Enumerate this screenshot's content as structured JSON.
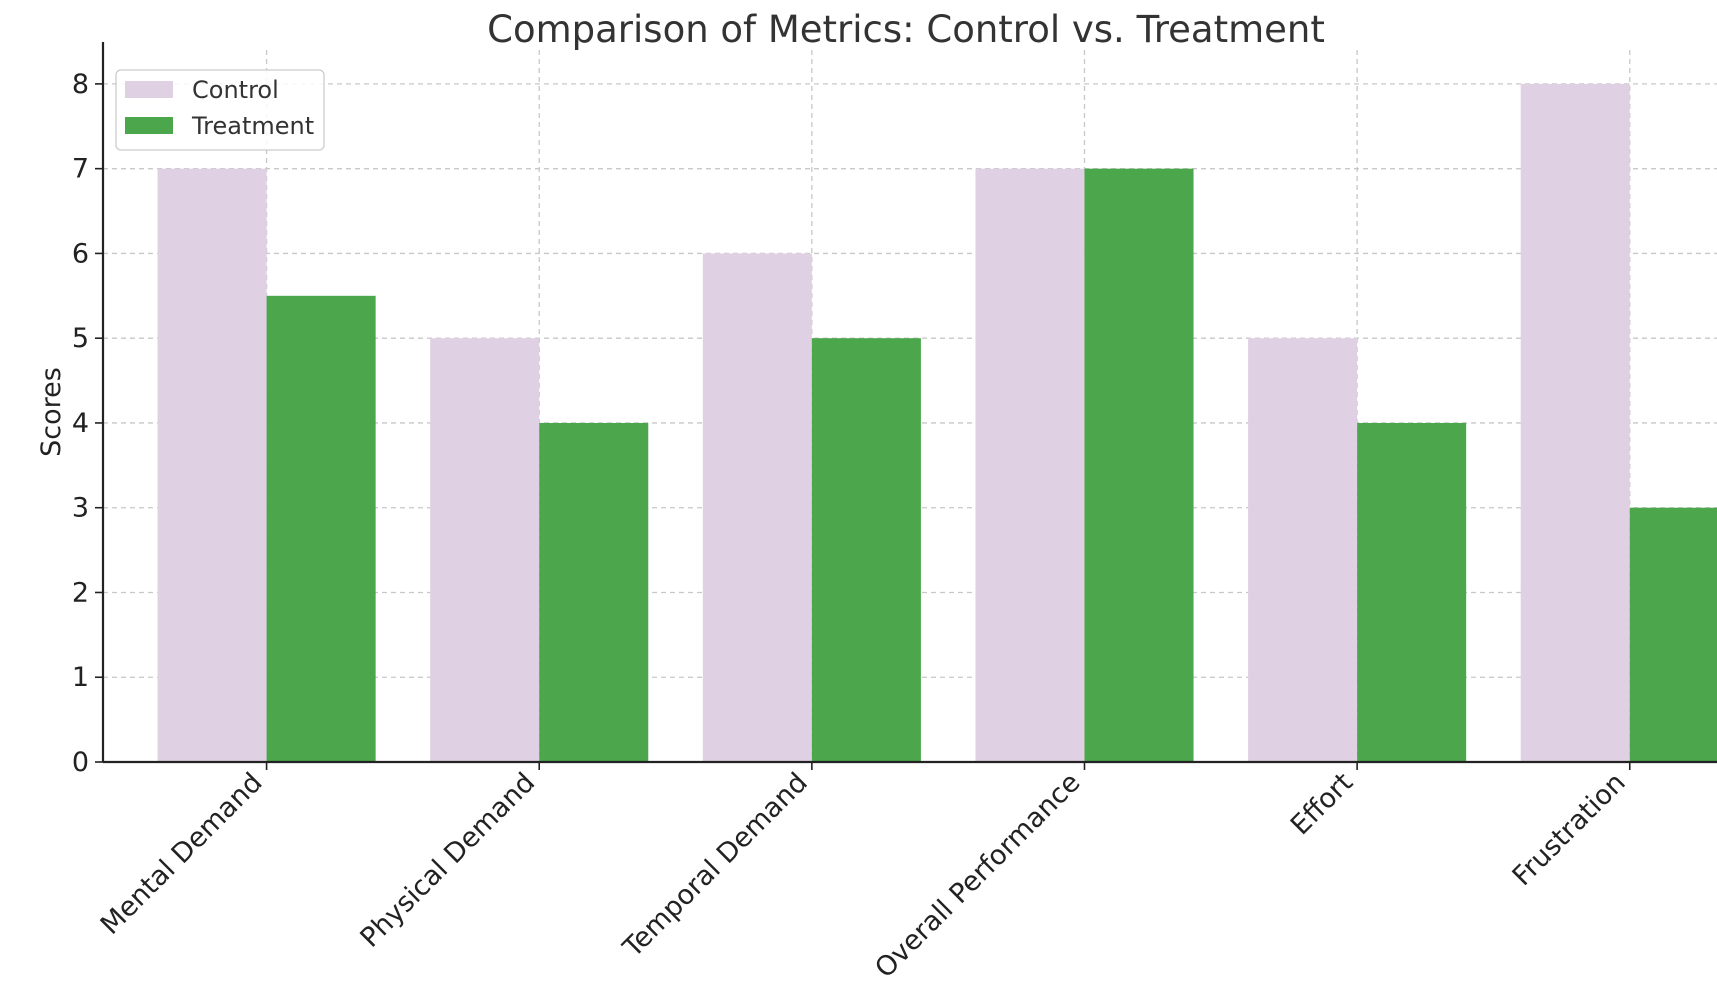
{
  "chart_data": {
    "type": "bar",
    "title": "Comparison of Metrics: Control vs. Treatment",
    "xlabel": "",
    "ylabel": "Scores",
    "categories": [
      "Mental Demand",
      "Physical Demand",
      "Temporal Demand",
      "Overall Performance",
      "Effort",
      "Frustration"
    ],
    "series": [
      {
        "name": "Control",
        "color": "#dfd1e3",
        "values": [
          7,
          5,
          6,
          7,
          5,
          8
        ]
      },
      {
        "name": "Treatment",
        "color": "#4ca64c",
        "values": [
          5.5,
          4,
          5,
          7,
          4,
          3
        ]
      }
    ],
    "ylim": [
      0,
      8.4
    ],
    "yticks": [
      "0",
      "1",
      "2",
      "3",
      "4",
      "5",
      "6",
      "7",
      "8"
    ],
    "grid": true,
    "legend_position": "top-left"
  }
}
